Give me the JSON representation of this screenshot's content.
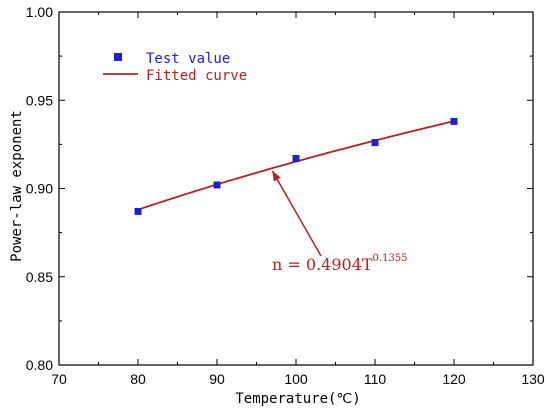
{
  "chart_data": {
    "type": "scatter",
    "xlabel": "Temperature(℃)",
    "ylabel": "Power-law exponent",
    "xlim": [
      70,
      130
    ],
    "ylim": [
      0.8,
      1.0
    ],
    "x_ticks": [
      "70",
      "80",
      "90",
      "100",
      "110",
      "120",
      "130"
    ],
    "y_ticks": [
      "0.80",
      "0.85",
      "0.90",
      "0.95",
      "1.00"
    ],
    "grid": false,
    "legend_position": "top-left",
    "series": [
      {
        "name": "Test value",
        "kind": "points",
        "marker": "square",
        "color": "#1f1fd0",
        "x": [
          80,
          90,
          100,
          110,
          120
        ],
        "y": [
          0.887,
          0.902,
          0.917,
          0.926,
          0.938
        ]
      },
      {
        "name": "Fitted curve",
        "kind": "line",
        "color": "#b22222",
        "model": {
          "coefficient": 0.4904,
          "exponent": 0.1355
        },
        "x_range": [
          80,
          120
        ]
      }
    ],
    "annotation": {
      "prefix": "n = 0.4904T",
      "superscript": "0.1355",
      "arrow_target": [
        97,
        0.91
      ],
      "color": "#b22222"
    }
  }
}
